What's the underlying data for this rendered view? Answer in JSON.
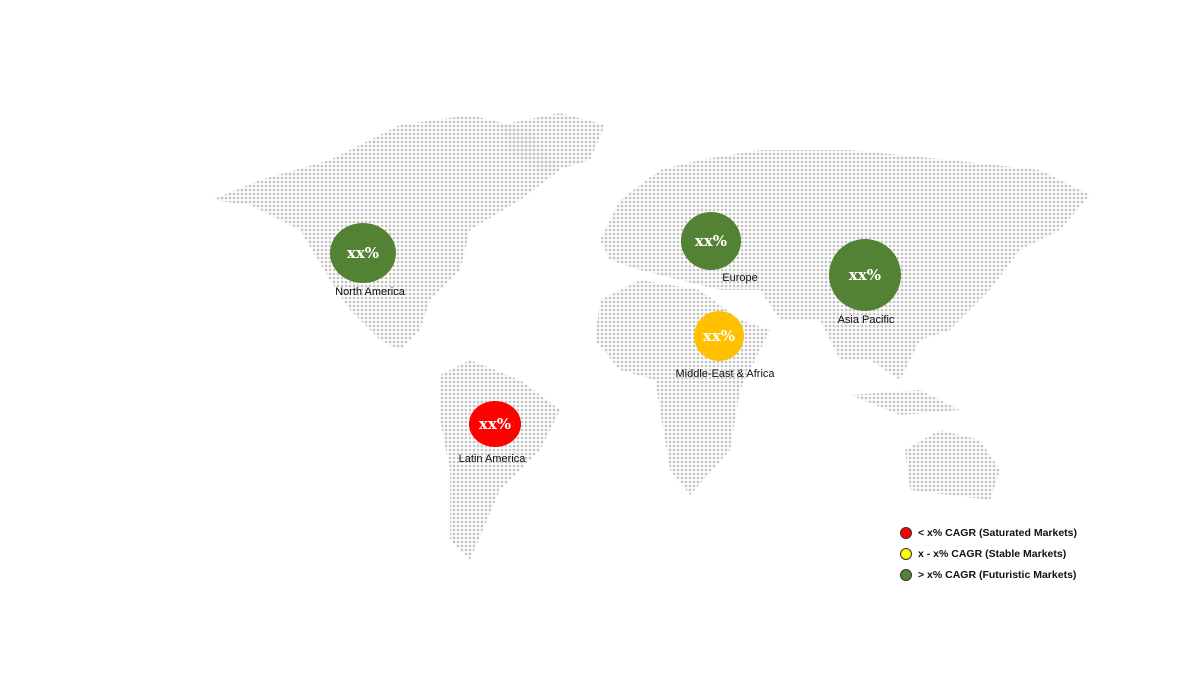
{
  "regions": [
    {
      "name": "North America",
      "value": "xx%",
      "color": "#548235"
    },
    {
      "name": "Europe",
      "value": "xx%",
      "color": "#548235"
    },
    {
      "name": "Asia Pacific",
      "value": "xx%",
      "color": "#548235"
    },
    {
      "name": "Middle-East & Africa",
      "value": "xx%",
      "color": "#FFC000"
    },
    {
      "name": "Latin America",
      "value": "xx%",
      "color": "#FF0000"
    }
  ],
  "legend": [
    {
      "label": "< x% CAGR (Saturated Markets)",
      "color": "#FF0000"
    },
    {
      "label": "x - x% CAGR (Stable Markets)",
      "color": "#FFFF00"
    },
    {
      "label": "> x% CAGR (Futuristic Markets)",
      "color": "#548235"
    }
  ]
}
